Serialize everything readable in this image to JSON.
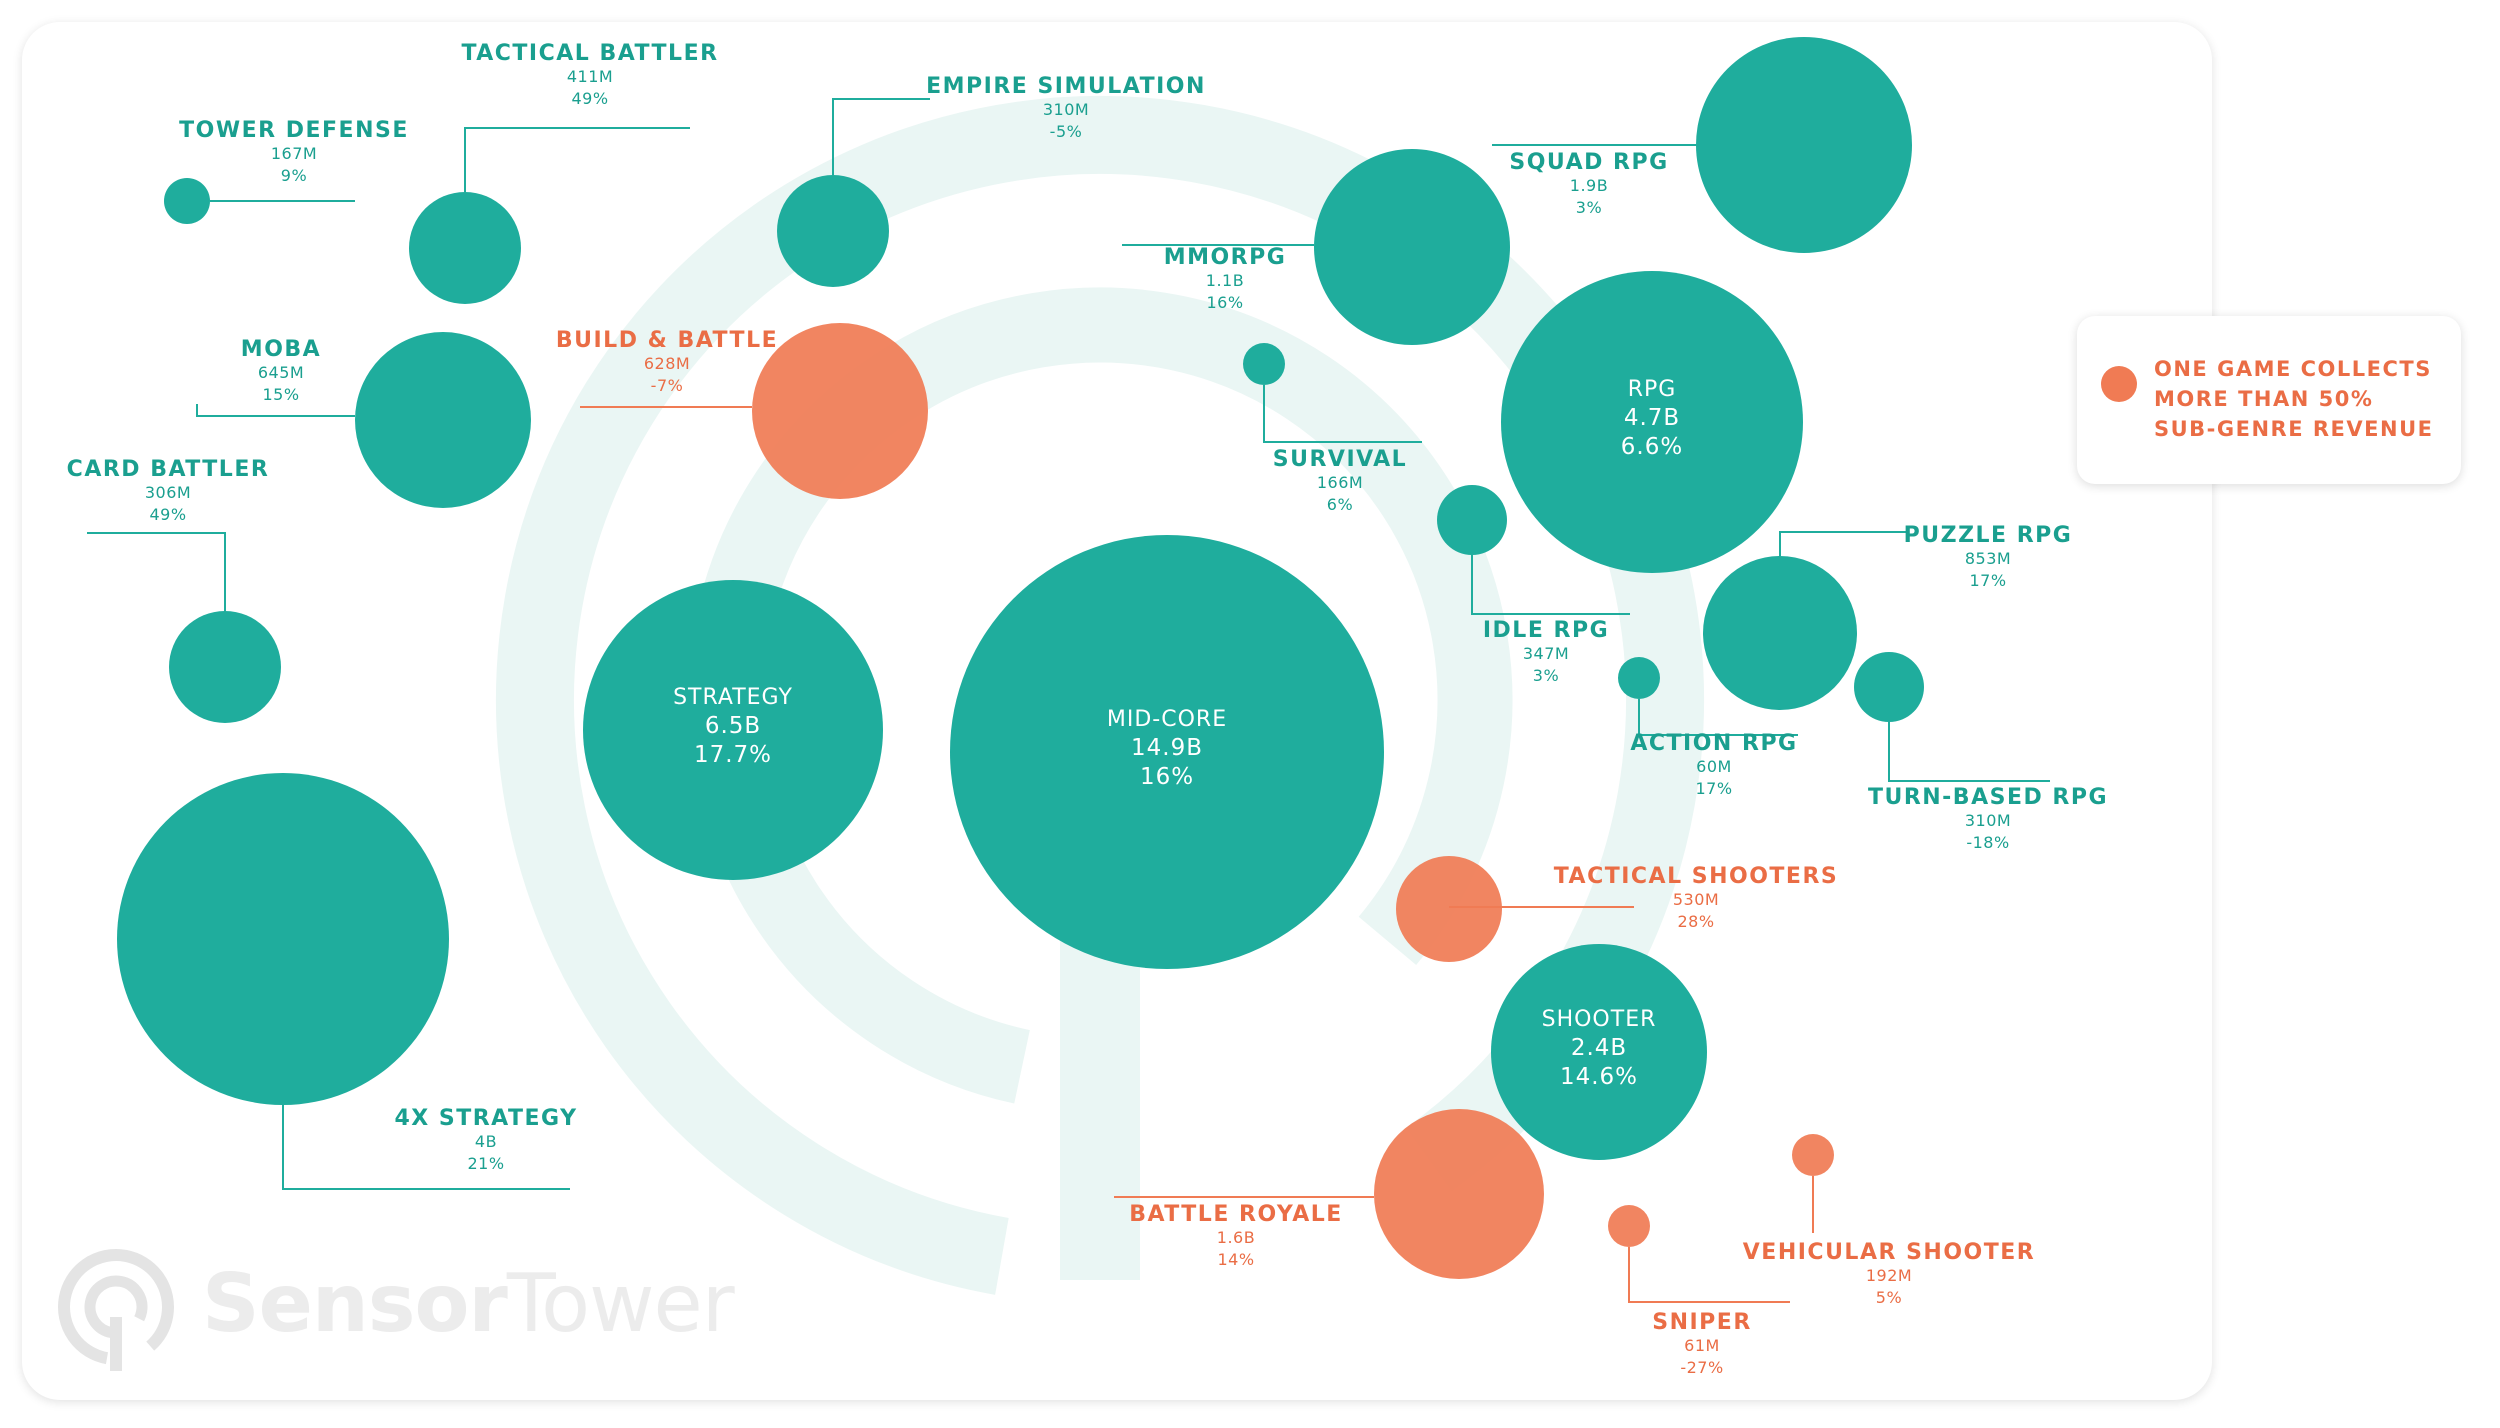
{
  "colors": {
    "teal": "#1fad9d",
    "teal_text": "#1a9f8f",
    "orange": "#f07b54",
    "orange_text": "#ea6d45",
    "watermark": "#eaf6f4"
  },
  "legend": {
    "lines": [
      "ONE GAME COLLECTS",
      "MORE THAN 50%",
      "SUB-GENRE REVENUE"
    ]
  },
  "brand": {
    "logo_icon": "sensor-tower-logo-icon",
    "part1": "Sensor",
    "part2": "Tower"
  },
  "chart_data": {
    "type": "bubble",
    "value_unit": "revenue",
    "highlight_rule": "orange = one game collects more than 50% of sub-genre revenue",
    "groups": [
      {
        "name": "MID-CORE",
        "value": "14.9B",
        "growth": "16%",
        "highlight": false
      },
      {
        "name": "STRATEGY",
        "value": "6.5B",
        "growth": "17.7%",
        "highlight": false
      },
      {
        "name": "RPG",
        "value": "4.7B",
        "growth": "6.6%",
        "highlight": false
      },
      {
        "name": "SHOOTER",
        "value": "2.4B",
        "growth": "14.6%",
        "highlight": false
      }
    ],
    "subgenres": [
      {
        "name": "TACTICAL BATTLER",
        "value": "411M",
        "growth": "49%",
        "parent": "STRATEGY",
        "highlight": false
      },
      {
        "name": "TOWER DEFENSE",
        "value": "167M",
        "growth": "9%",
        "parent": "STRATEGY",
        "highlight": false
      },
      {
        "name": "MOBA",
        "value": "645M",
        "growth": "15%",
        "parent": "STRATEGY",
        "highlight": false
      },
      {
        "name": "CARD BATTLER",
        "value": "306M",
        "growth": "49%",
        "parent": "STRATEGY",
        "highlight": false
      },
      {
        "name": "4X STRATEGY",
        "value": "4B",
        "growth": "21%",
        "parent": "STRATEGY",
        "highlight": false
      },
      {
        "name": "EMPIRE SIMULATION",
        "value": "310M",
        "growth": "-5%",
        "parent": "STRATEGY",
        "highlight": false
      },
      {
        "name": "BUILD & BATTLE",
        "value": "628M",
        "growth": "-7%",
        "parent": "STRATEGY",
        "highlight": true
      },
      {
        "name": "SQUAD RPG",
        "value": "1.9B",
        "growth": "3%",
        "parent": "RPG",
        "highlight": false
      },
      {
        "name": "MMORPG",
        "value": "1.1B",
        "growth": "16%",
        "parent": "RPG",
        "highlight": false
      },
      {
        "name": "SURVIVAL",
        "value": "166M",
        "growth": "6%",
        "parent": "RPG",
        "highlight": false
      },
      {
        "name": "IDLE RPG",
        "value": "347M",
        "growth": "3%",
        "parent": "RPG",
        "highlight": false
      },
      {
        "name": "PUZZLE RPG",
        "value": "853M",
        "growth": "17%",
        "parent": "RPG",
        "highlight": false
      },
      {
        "name": "ACTION RPG",
        "value": "60M",
        "growth": "17%",
        "parent": "RPG",
        "highlight": false
      },
      {
        "name": "TURN-BASED RPG",
        "value": "310M",
        "growth": "-18%",
        "parent": "RPG",
        "highlight": false
      },
      {
        "name": "TACTICAL SHOOTERS",
        "value": "530M",
        "growth": "28%",
        "parent": "SHOOTER",
        "highlight": true
      },
      {
        "name": "BATTLE ROYALE",
        "value": "1.6B",
        "growth": "14%",
        "parent": "SHOOTER",
        "highlight": true
      },
      {
        "name": "VEHICULAR SHOOTER",
        "value": "192M",
        "growth": "5%",
        "parent": "SHOOTER",
        "highlight": true
      },
      {
        "name": "SNIPER",
        "value": "61M",
        "growth": "-27%",
        "parent": "SHOOTER",
        "highlight": true
      }
    ]
  }
}
